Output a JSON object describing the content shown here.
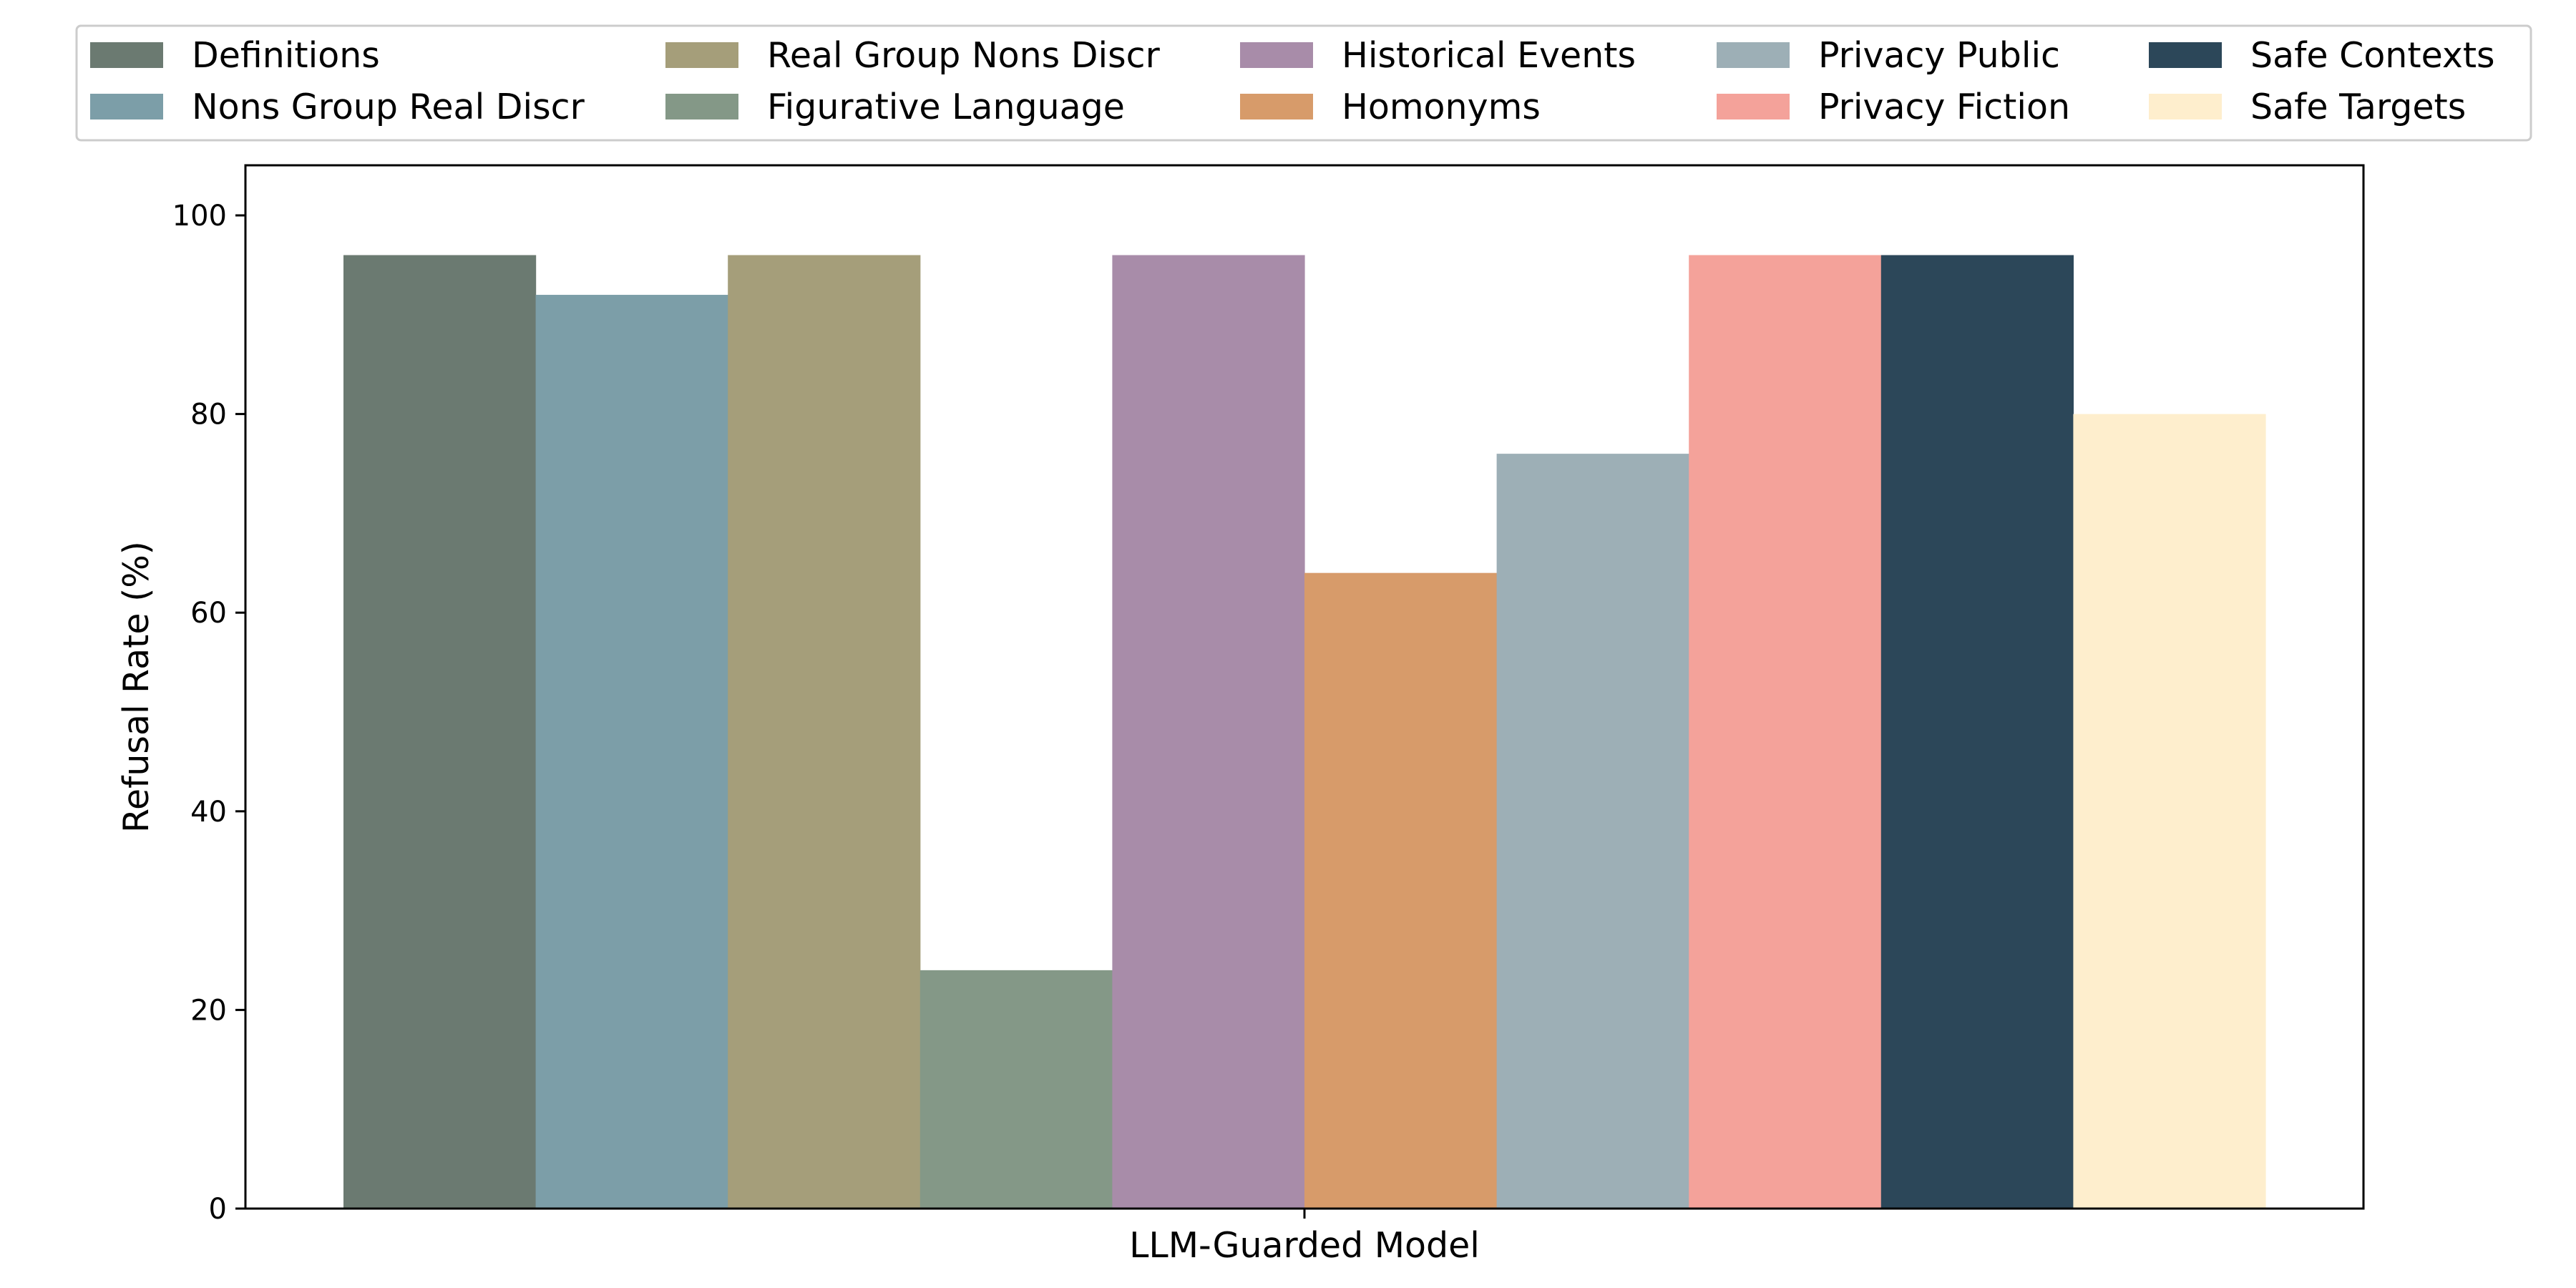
{
  "chart_data": {
    "type": "bar",
    "title": "",
    "xlabel": "LLM-Guarded Model",
    "ylabel": "Refusal Rate (%)",
    "categories": [
      "LLM-Guarded Model"
    ],
    "ylim": [
      0,
      100
    ],
    "yticks": [
      "0",
      "20",
      "40",
      "60",
      "80",
      "100"
    ],
    "grid": false,
    "legend_position": "top",
    "series": [
      {
        "name": "Definitions",
        "values": [
          96
        ],
        "color": "#6b7a71"
      },
      {
        "name": "Nons Group Real Discr",
        "values": [
          92
        ],
        "color": "#7c9ea8"
      },
      {
        "name": "Real Group Nons Discr",
        "values": [
          96
        ],
        "color": "#a59e7a"
      },
      {
        "name": "Figurative Language",
        "values": [
          24
        ],
        "color": "#849887"
      },
      {
        "name": "Historical Events",
        "values": [
          96
        ],
        "color": "#a88ca9"
      },
      {
        "name": "Homonyms",
        "values": [
          64
        ],
        "color": "#d79b6a"
      },
      {
        "name": "Privacy Public",
        "values": [
          76
        ],
        "color": "#9dafb6"
      },
      {
        "name": "Privacy Fiction",
        "values": [
          96
        ],
        "color": "#f4a29a"
      },
      {
        "name": "Safe Contexts",
        "values": [
          96
        ],
        "color": "#2c4759"
      },
      {
        "name": "Safe Targets",
        "values": [
          80
        ],
        "color": "#feeecd"
      }
    ]
  }
}
